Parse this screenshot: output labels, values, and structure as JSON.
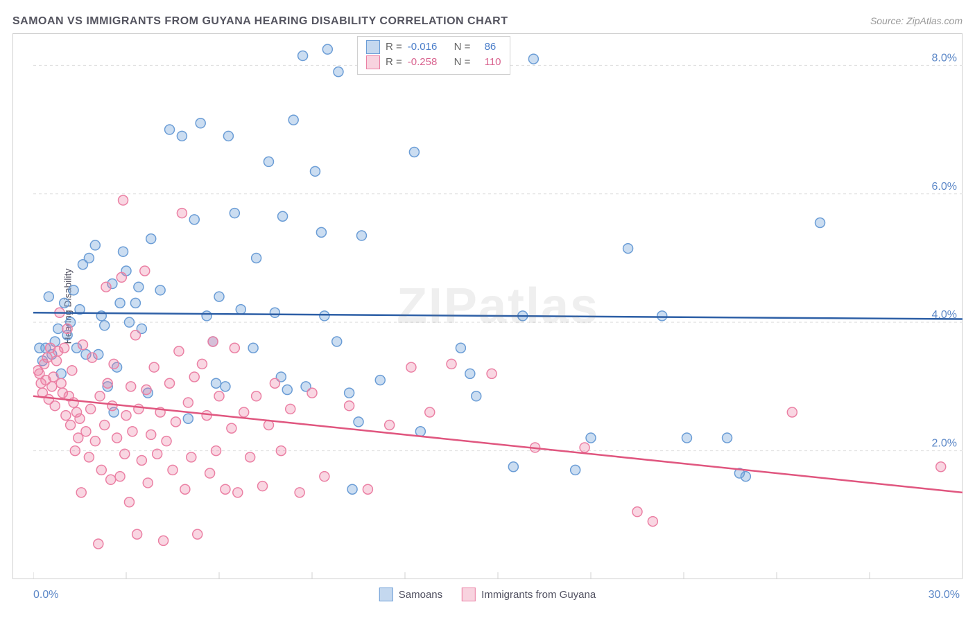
{
  "title": "SAMOAN VS IMMIGRANTS FROM GUYANA HEARING DISABILITY CORRELATION CHART",
  "source_prefix": "Source: ",
  "source_name": "ZipAtlas.com",
  "ylabel": "Hearing Disability",
  "watermark": "ZIPatlas",
  "chart": {
    "type": "scatter",
    "xlim": [
      0,
      30
    ],
    "ylim": [
      0,
      8.5
    ],
    "background_color": "#ffffff",
    "grid_color": "#dddddd",
    "grid_dash": "4,4",
    "axis_tick_color": "#d0d0d0",
    "x_ticks": [
      0,
      3,
      6,
      9,
      12,
      15,
      18,
      21,
      24,
      27,
      30
    ],
    "y_gridlines": [
      2,
      4,
      6,
      8
    ],
    "y_labels": [
      "2.0%",
      "4.0%",
      "6.0%",
      "8.0%"
    ],
    "y_label_color": "#5b87c7",
    "x_min_label": "0.0%",
    "x_max_label": "30.0%",
    "marker_radius": 7,
    "marker_stroke_width": 1.5,
    "trend_stroke_width": 2.5,
    "series": [
      {
        "name": "Samoans",
        "fill": "rgba(107,157,214,0.35)",
        "stroke": "#6b9dd6",
        "trend_color": "#2d5fa6",
        "trend": {
          "y_at_x0": 4.15,
          "y_at_xmax": 4.05
        },
        "R": "-0.016",
        "N": "86",
        "points": [
          [
            0.3,
            3.4
          ],
          [
            0.4,
            3.6
          ],
          [
            0.5,
            4.4
          ],
          [
            0.6,
            3.5
          ],
          [
            0.7,
            3.7
          ],
          [
            0.8,
            3.9
          ],
          [
            0.9,
            3.2
          ],
          [
            1.0,
            4.3
          ],
          [
            1.1,
            3.8
          ],
          [
            1.2,
            4.0
          ],
          [
            1.3,
            4.5
          ],
          [
            1.4,
            3.6
          ],
          [
            1.5,
            4.2
          ],
          [
            1.6,
            4.9
          ],
          [
            1.8,
            5.0
          ],
          [
            2.0,
            5.2
          ],
          [
            2.1,
            3.5
          ],
          [
            2.2,
            4.1
          ],
          [
            2.3,
            3.95
          ],
          [
            2.4,
            3.0
          ],
          [
            2.55,
            4.6
          ],
          [
            2.6,
            2.6
          ],
          [
            2.7,
            3.3
          ],
          [
            2.9,
            5.1
          ],
          [
            3.0,
            4.8
          ],
          [
            3.1,
            4.0
          ],
          [
            3.3,
            4.3
          ],
          [
            3.4,
            4.55
          ],
          [
            3.5,
            3.9
          ],
          [
            3.7,
            2.9
          ],
          [
            3.8,
            5.3
          ],
          [
            4.1,
            4.5
          ],
          [
            4.4,
            7.0
          ],
          [
            4.8,
            6.9
          ],
          [
            5.0,
            2.5
          ],
          [
            5.2,
            5.6
          ],
          [
            5.4,
            7.1
          ],
          [
            5.6,
            4.1
          ],
          [
            5.8,
            3.7
          ],
          [
            6.0,
            4.4
          ],
          [
            6.2,
            3.0
          ],
          [
            6.3,
            6.9
          ],
          [
            6.5,
            5.7
          ],
          [
            6.7,
            4.2
          ],
          [
            7.1,
            3.6
          ],
          [
            7.2,
            5.0
          ],
          [
            7.6,
            6.5
          ],
          [
            7.8,
            4.15
          ],
          [
            8.0,
            3.15
          ],
          [
            8.05,
            5.65
          ],
          [
            8.2,
            2.95
          ],
          [
            8.4,
            7.15
          ],
          [
            8.7,
            8.15
          ],
          [
            8.8,
            3.0
          ],
          [
            9.1,
            6.35
          ],
          [
            9.3,
            5.4
          ],
          [
            9.4,
            4.1
          ],
          [
            9.5,
            8.25
          ],
          [
            9.8,
            3.7
          ],
          [
            9.85,
            7.9
          ],
          [
            10.2,
            2.9
          ],
          [
            10.3,
            1.4
          ],
          [
            10.5,
            2.45
          ],
          [
            10.6,
            5.35
          ],
          [
            11.2,
            3.1
          ],
          [
            12.3,
            6.65
          ],
          [
            12.5,
            2.3
          ],
          [
            13.8,
            3.6
          ],
          [
            14.1,
            3.2
          ],
          [
            14.3,
            2.85
          ],
          [
            15.5,
            1.75
          ],
          [
            15.8,
            4.1
          ],
          [
            16.15,
            8.1
          ],
          [
            17.5,
            1.7
          ],
          [
            18.0,
            2.2
          ],
          [
            19.2,
            5.15
          ],
          [
            20.3,
            4.1
          ],
          [
            21.1,
            2.2
          ],
          [
            22.4,
            2.2
          ],
          [
            22.8,
            1.65
          ],
          [
            23.0,
            1.6
          ],
          [
            25.4,
            5.55
          ],
          [
            5.9,
            3.05
          ],
          [
            1.7,
            3.5
          ],
          [
            0.2,
            3.6
          ],
          [
            2.8,
            4.3
          ]
        ]
      },
      {
        "name": "Immigrants from Guyana",
        "fill": "rgba(235,128,164,0.32)",
        "stroke": "#eb80a4",
        "trend_color": "#e0567f",
        "trend": {
          "y_at_x0": 2.85,
          "y_at_xmax": 1.35
        },
        "R": "-0.258",
        "N": "110",
        "points": [
          [
            0.2,
            3.2
          ],
          [
            0.25,
            3.05
          ],
          [
            0.3,
            2.9
          ],
          [
            0.35,
            3.35
          ],
          [
            0.4,
            3.1
          ],
          [
            0.45,
            3.45
          ],
          [
            0.5,
            2.8
          ],
          [
            0.55,
            3.6
          ],
          [
            0.6,
            3.0
          ],
          [
            0.65,
            3.15
          ],
          [
            0.7,
            2.7
          ],
          [
            0.75,
            3.4
          ],
          [
            0.8,
            3.55
          ],
          [
            0.85,
            4.15
          ],
          [
            0.9,
            3.05
          ],
          [
            0.95,
            2.9
          ],
          [
            1.0,
            3.6
          ],
          [
            1.05,
            2.55
          ],
          [
            1.1,
            3.9
          ],
          [
            1.15,
            2.85
          ],
          [
            1.2,
            2.4
          ],
          [
            1.25,
            3.25
          ],
          [
            1.3,
            2.75
          ],
          [
            1.35,
            2.0
          ],
          [
            1.4,
            2.6
          ],
          [
            1.45,
            2.2
          ],
          [
            1.5,
            2.5
          ],
          [
            1.6,
            3.65
          ],
          [
            1.7,
            2.3
          ],
          [
            1.8,
            1.9
          ],
          [
            1.85,
            2.65
          ],
          [
            1.9,
            3.45
          ],
          [
            2.0,
            2.15
          ],
          [
            2.1,
            0.55
          ],
          [
            2.15,
            2.85
          ],
          [
            2.2,
            1.7
          ],
          [
            2.3,
            2.4
          ],
          [
            2.35,
            4.55
          ],
          [
            2.4,
            3.05
          ],
          [
            2.5,
            1.55
          ],
          [
            2.55,
            2.7
          ],
          [
            2.6,
            3.35
          ],
          [
            2.7,
            2.2
          ],
          [
            2.8,
            1.6
          ],
          [
            2.85,
            4.7
          ],
          [
            2.9,
            5.9
          ],
          [
            2.95,
            1.95
          ],
          [
            3.0,
            2.55
          ],
          [
            3.1,
            1.2
          ],
          [
            3.15,
            3.0
          ],
          [
            3.2,
            2.3
          ],
          [
            3.3,
            3.8
          ],
          [
            3.35,
            0.7
          ],
          [
            3.4,
            2.65
          ],
          [
            3.5,
            1.85
          ],
          [
            3.6,
            4.8
          ],
          [
            3.65,
            2.95
          ],
          [
            3.7,
            1.5
          ],
          [
            3.8,
            2.25
          ],
          [
            3.9,
            3.3
          ],
          [
            4.0,
            1.95
          ],
          [
            4.1,
            2.6
          ],
          [
            4.2,
            0.6
          ],
          [
            4.3,
            2.15
          ],
          [
            4.4,
            3.05
          ],
          [
            4.5,
            1.7
          ],
          [
            4.6,
            2.45
          ],
          [
            4.7,
            3.55
          ],
          [
            4.8,
            5.7
          ],
          [
            4.9,
            1.4
          ],
          [
            5.0,
            2.75
          ],
          [
            5.1,
            1.9
          ],
          [
            5.2,
            3.15
          ],
          [
            5.3,
            0.7
          ],
          [
            5.45,
            3.35
          ],
          [
            5.6,
            2.55
          ],
          [
            5.7,
            1.65
          ],
          [
            5.8,
            3.7
          ],
          [
            5.9,
            2.0
          ],
          [
            6.0,
            2.85
          ],
          [
            6.2,
            1.4
          ],
          [
            6.4,
            2.35
          ],
          [
            6.5,
            3.6
          ],
          [
            6.6,
            1.35
          ],
          [
            6.8,
            2.6
          ],
          [
            7.0,
            1.9
          ],
          [
            7.2,
            2.85
          ],
          [
            7.4,
            1.45
          ],
          [
            7.6,
            2.4
          ],
          [
            7.8,
            3.05
          ],
          [
            8.0,
            2.0
          ],
          [
            8.3,
            2.65
          ],
          [
            8.6,
            1.35
          ],
          [
            9.0,
            2.9
          ],
          [
            9.4,
            1.6
          ],
          [
            10.2,
            2.7
          ],
          [
            10.8,
            1.4
          ],
          [
            11.5,
            2.4
          ],
          [
            12.2,
            3.3
          ],
          [
            12.8,
            2.6
          ],
          [
            13.5,
            3.35
          ],
          [
            14.8,
            3.2
          ],
          [
            16.2,
            2.05
          ],
          [
            17.8,
            2.05
          ],
          [
            19.5,
            1.05
          ],
          [
            20.0,
            0.9
          ],
          [
            24.5,
            2.6
          ],
          [
            29.3,
            1.75
          ],
          [
            1.55,
            1.35
          ],
          [
            0.15,
            3.25
          ]
        ]
      }
    ]
  },
  "legend_top": {
    "R_label": "R =",
    "N_label": "N ="
  }
}
